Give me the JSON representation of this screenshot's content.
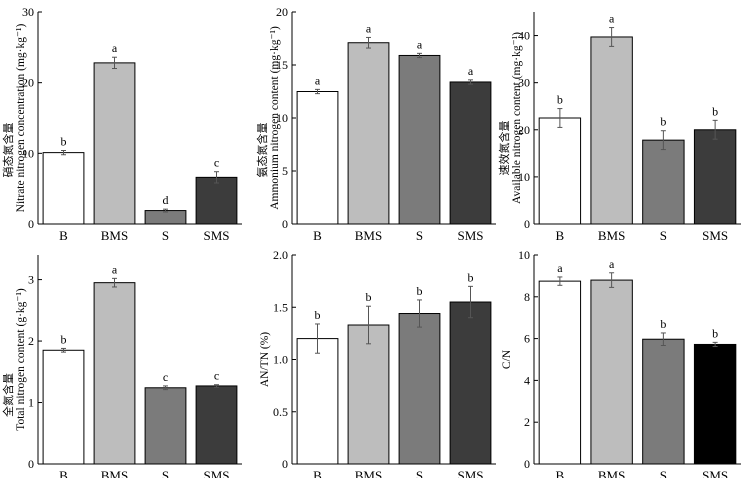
{
  "chart_data": [
    {
      "type": "bar",
      "id": "nitrate",
      "categories": [
        "B",
        "BMS",
        "S",
        "SMS"
      ],
      "values": [
        10.1,
        22.8,
        1.9,
        6.6
      ],
      "errors": [
        0.3,
        0.8,
        0.2,
        0.8
      ],
      "significance": [
        "b",
        "a",
        "d",
        "c"
      ],
      "ylabel_cn": "硝态氮含量",
      "ylabel_en": "Nitrate nitrogen concentration (mg·kg⁻¹)",
      "ylim": [
        0,
        30
      ],
      "yticks": [
        0,
        10,
        20,
        30
      ],
      "ytick_labels": [
        "0",
        "10",
        "20",
        "30"
      ]
    },
    {
      "type": "bar",
      "id": "ammonium",
      "categories": [
        "B",
        "BMS",
        "S",
        "SMS"
      ],
      "values": [
        12.5,
        17.1,
        15.9,
        13.4
      ],
      "errors": [
        0.2,
        0.5,
        0.2,
        0.2
      ],
      "significance": [
        "a",
        "a",
        "a",
        "a"
      ],
      "ylabel_cn": "氨态氮含量",
      "ylabel_en": "Ammonium nitrogen content (mg·kg⁻¹)",
      "ylim": [
        0,
        20
      ],
      "yticks": [
        0,
        5,
        10,
        15,
        20
      ],
      "ytick_labels": [
        "0",
        "5",
        "10",
        "15",
        "20"
      ]
    },
    {
      "type": "bar",
      "id": "available",
      "categories": [
        "B",
        "BMS",
        "S",
        "SMS"
      ],
      "values": [
        22.5,
        39.7,
        17.8,
        20.0
      ],
      "errors": [
        2.0,
        2.0,
        2.0,
        2.0
      ],
      "significance": [
        "b",
        "a",
        "b",
        "b"
      ],
      "ylabel_cn": "速效氮含量",
      "ylabel_en": "Available nitrogen content (mg·kg⁻¹)",
      "ylim": [
        0,
        45
      ],
      "yticks": [
        0,
        10,
        20,
        30,
        40
      ],
      "ytick_labels": [
        "0",
        "10",
        "20",
        "30",
        "40"
      ]
    },
    {
      "type": "bar",
      "id": "total",
      "categories": [
        "B",
        "BMS",
        "S",
        "SMS"
      ],
      "values": [
        1.85,
        2.95,
        1.24,
        1.27
      ],
      "errors": [
        0.03,
        0.07,
        0.03,
        0.02
      ],
      "significance": [
        "b",
        "a",
        "c",
        "c"
      ],
      "ylabel_cn": "全氮含量",
      "ylabel_en": "Total nitrogen content (g·kg⁻¹)",
      "ylim": [
        0,
        3.4
      ],
      "yticks": [
        0,
        1,
        2,
        3
      ],
      "ytick_labels": [
        "0",
        "1",
        "2",
        "3"
      ]
    },
    {
      "type": "bar",
      "id": "an_tn",
      "categories": [
        "B",
        "BMS",
        "S",
        "SMS"
      ],
      "values": [
        1.2,
        1.33,
        1.44,
        1.55
      ],
      "errors": [
        0.14,
        0.18,
        0.13,
        0.15
      ],
      "significance": [
        "b",
        "b",
        "b",
        "b"
      ],
      "ylabel_cn": "",
      "ylabel_en": "AN/TN (%)",
      "ylim": [
        0,
        2.0
      ],
      "yticks": [
        0,
        0.5,
        1.0,
        1.5,
        2.0
      ],
      "ytick_labels": [
        "0",
        "0.5",
        "1.0",
        "1.5",
        "2.0"
      ]
    },
    {
      "type": "bar",
      "id": "cn",
      "categories": [
        "B",
        "BMS",
        "S",
        "SMS"
      ],
      "values": [
        8.75,
        8.8,
        5.97,
        5.72
      ],
      "errors": [
        0.2,
        0.35,
        0.3,
        0.1
      ],
      "significance": [
        "a",
        "a",
        "b",
        "b"
      ],
      "ylabel_cn": "",
      "ylabel_en": "C/N",
      "ylim": [
        0,
        10
      ],
      "yticks": [
        0,
        2,
        4,
        6,
        8,
        10
      ],
      "ytick_labels": [
        "0",
        "2",
        "4",
        "6",
        "8",
        "10"
      ]
    }
  ],
  "colors": {
    "B": "#ffffff",
    "BMS": "#bdbdbd",
    "S": "#7b7b7b",
    "SMS": "#3c3c3c",
    "SMS_cn": "#000000",
    "axis": "#000000"
  }
}
